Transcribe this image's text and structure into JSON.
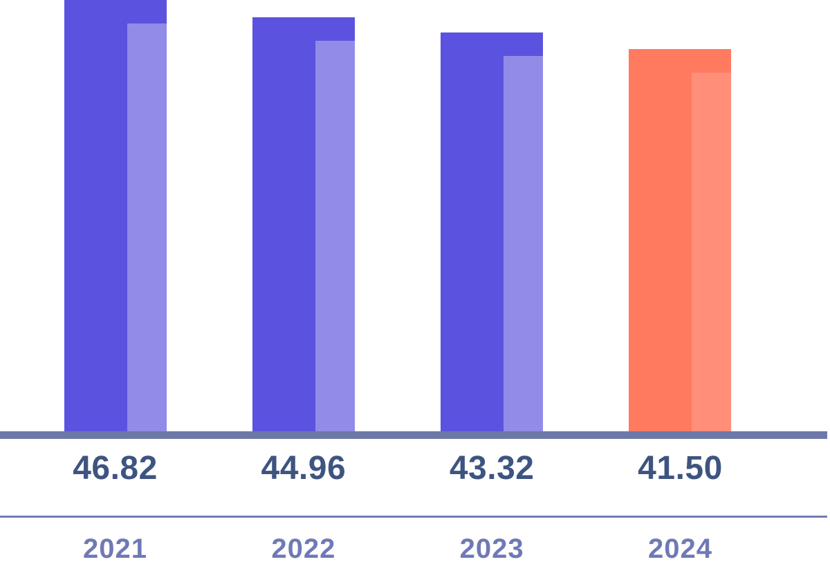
{
  "chart_data": {
    "type": "bar",
    "title": "",
    "xlabel": "",
    "ylabel": "",
    "categories": [
      "2021",
      "2022",
      "2023",
      "2024"
    ],
    "values": [
      46.82,
      44.96,
      43.32,
      41.5
    ],
    "value_labels": [
      "46.82",
      "44.96",
      "43.32",
      "41.50"
    ],
    "ylim": [
      0,
      46.82
    ],
    "grid": false,
    "legend": false,
    "bar_colors": [
      "#5b52e0",
      "#5b52e0",
      "#5b52e0",
      "#ff7a5f"
    ],
    "bar_highlight_colors": [
      "#928be8",
      "#928be8",
      "#928be8",
      "#ff8f79"
    ],
    "axis_band_color": "#6c79a8",
    "divider_line_color": "#717ab4",
    "value_label_color": "#3e5480",
    "category_label_color": "#6f79b6",
    "background_color": "#ffffff"
  }
}
